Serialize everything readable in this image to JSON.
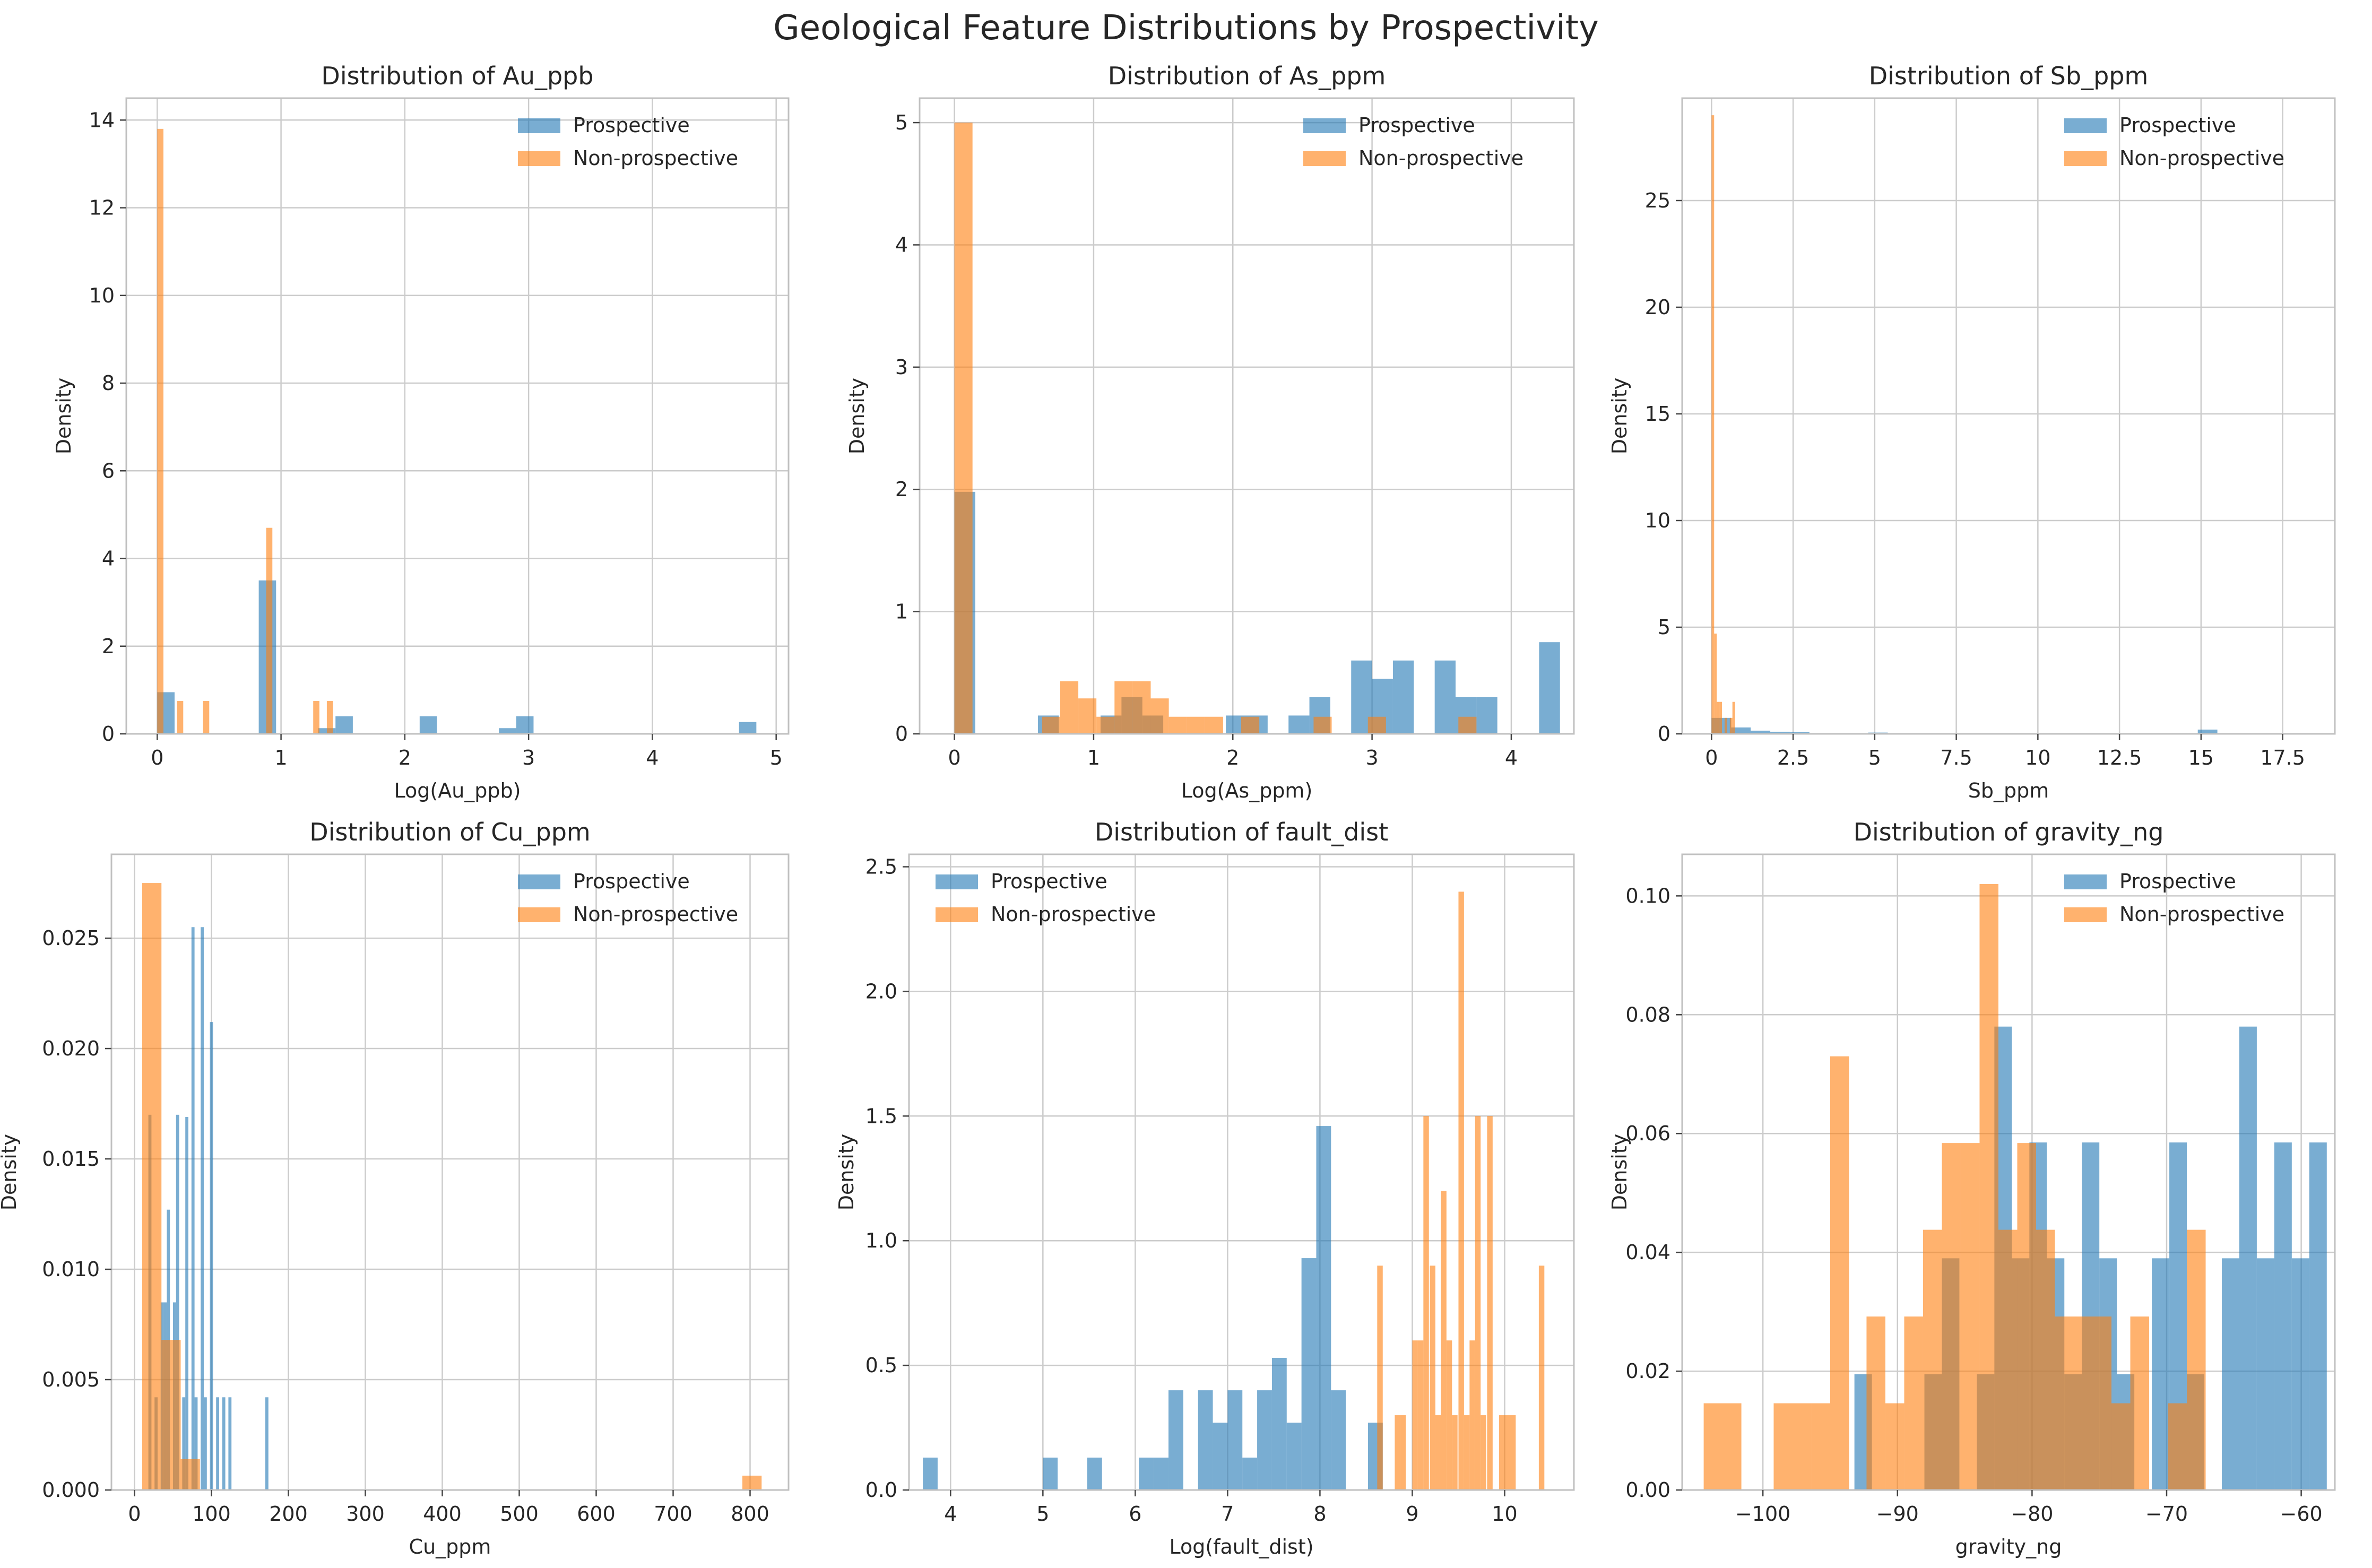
{
  "suptitle": "Geological Feature Distributions by Prospectivity",
  "colors": {
    "prospective": "#1f77b4",
    "non_prospective": "#ff7f0e",
    "grid": "#cccccc",
    "axes": "#c0c0c0",
    "text": "#262626"
  },
  "chart_data": [
    {
      "type": "histogram",
      "title": "Distribution of Au_ppb",
      "xlabel": "Log(Au_ppb)",
      "ylabel": "Density",
      "xlim": [
        -0.25,
        5.1
      ],
      "ylim": [
        0,
        14.5
      ],
      "xticks": [
        0,
        1,
        2,
        3,
        4,
        5
      ],
      "yticks": [
        0,
        2,
        4,
        6,
        8,
        10,
        12,
        14
      ],
      "grid": true,
      "legend": "top-right",
      "series": [
        {
          "name": "Prospective",
          "bins": [
            [
              0.0,
              0.14,
              0.95
            ],
            [
              0.82,
              0.96,
              3.5
            ],
            [
              1.3,
              1.44,
              0.13
            ],
            [
              1.44,
              1.58,
              0.4
            ],
            [
              2.12,
              2.26,
              0.4
            ],
            [
              2.76,
              2.9,
              0.13
            ],
            [
              2.9,
              3.04,
              0.4
            ],
            [
              4.7,
              4.84,
              0.27
            ]
          ]
        },
        {
          "name": "Non-prospective",
          "bins": [
            [
              0.0,
              0.05,
              13.8
            ],
            [
              0.16,
              0.21,
              0.75
            ],
            [
              0.37,
              0.42,
              0.75
            ],
            [
              0.88,
              0.93,
              4.7
            ],
            [
              1.26,
              1.31,
              0.75
            ],
            [
              1.37,
              1.42,
              0.75
            ]
          ]
        }
      ]
    },
    {
      "type": "histogram",
      "title": "Distribution of As_ppm",
      "xlabel": "Log(As_ppm)",
      "ylabel": "Density",
      "xlim": [
        -0.25,
        4.45
      ],
      "ylim": [
        0,
        5.2
      ],
      "xticks": [
        0,
        1,
        2,
        3,
        4
      ],
      "yticks": [
        0,
        1,
        2,
        3,
        4,
        5
      ],
      "grid": true,
      "legend": "top-right",
      "series": [
        {
          "name": "Prospective",
          "bins": [
            [
              0.0,
              0.15,
              1.98
            ],
            [
              0.6,
              0.75,
              0.15
            ],
            [
              1.05,
              1.2,
              0.15
            ],
            [
              1.2,
              1.35,
              0.3
            ],
            [
              1.35,
              1.5,
              0.15
            ],
            [
              1.95,
              2.1,
              0.15
            ],
            [
              2.1,
              2.25,
              0.15
            ],
            [
              2.4,
              2.55,
              0.15
            ],
            [
              2.55,
              2.7,
              0.3
            ],
            [
              2.85,
              3.0,
              0.6
            ],
            [
              3.0,
              3.15,
              0.45
            ],
            [
              3.15,
              3.3,
              0.6
            ],
            [
              3.45,
              3.6,
              0.6
            ],
            [
              3.6,
              3.75,
              0.3
            ],
            [
              3.75,
              3.9,
              0.3
            ],
            [
              4.2,
              4.35,
              0.75
            ]
          ]
        },
        {
          "name": "Non-prospective",
          "bins": [
            [
              0.0,
              0.13,
              5.0
            ],
            [
              0.63,
              0.76,
              0.14
            ],
            [
              0.76,
              0.89,
              0.43
            ],
            [
              0.89,
              1.02,
              0.29
            ],
            [
              1.02,
              1.15,
              0.14
            ],
            [
              1.15,
              1.28,
              0.43
            ],
            [
              1.28,
              1.41,
              0.43
            ],
            [
              1.41,
              1.54,
              0.29
            ],
            [
              1.54,
              1.67,
              0.14
            ],
            [
              1.67,
              1.8,
              0.14
            ],
            [
              1.8,
              1.93,
              0.14
            ],
            [
              2.06,
              2.19,
              0.14
            ],
            [
              2.58,
              2.71,
              0.14
            ],
            [
              2.97,
              3.1,
              0.14
            ],
            [
              3.62,
              3.75,
              0.14
            ]
          ]
        }
      ]
    },
    {
      "type": "histogram",
      "title": "Distribution of Sb_ppm",
      "xlabel": "Sb_ppm",
      "ylabel": "Density",
      "xlim": [
        -0.9,
        19.1
      ],
      "ylim": [
        0,
        29.8
      ],
      "xticks": [
        0.0,
        2.5,
        5.0,
        7.5,
        10.0,
        12.5,
        15.0,
        17.5
      ],
      "yticks": [
        0,
        5,
        10,
        15,
        20,
        25
      ],
      "grid": true,
      "legend": "top-right",
      "series": [
        {
          "name": "Prospective",
          "bins": [
            [
              0.0,
              0.6,
              0.75
            ],
            [
              0.6,
              1.2,
              0.3
            ],
            [
              1.2,
              1.8,
              0.15
            ],
            [
              1.8,
              2.4,
              0.1
            ],
            [
              2.4,
              3.0,
              0.08
            ],
            [
              4.8,
              5.4,
              0.06
            ],
            [
              14.9,
              15.5,
              0.2
            ]
          ]
        },
        {
          "name": "Non-prospective",
          "bins": [
            [
              0.0,
              0.08,
              29.0
            ],
            [
              0.08,
              0.16,
              4.7
            ],
            [
              0.16,
              0.24,
              1.5
            ],
            [
              0.24,
              0.32,
              1.5
            ],
            [
              0.4,
              0.48,
              0.75
            ],
            [
              0.56,
              0.64,
              0.75
            ],
            [
              0.64,
              0.72,
              1.5
            ]
          ]
        }
      ]
    },
    {
      "type": "histogram",
      "title": "Distribution of Cu_ppm",
      "xlabel": "Cu_ppm",
      "ylabel": "Density",
      "xlim": [
        -30,
        850
      ],
      "ylim": [
        0,
        0.0288
      ],
      "xticks": [
        0,
        100,
        200,
        300,
        400,
        500,
        600,
        700,
        800
      ],
      "yticks": [
        0.0,
        0.005,
        0.01,
        0.015,
        0.02,
        0.025
      ],
      "ytick_labels": [
        "0.000",
        "0.005",
        "0.010",
        "0.015",
        "0.020",
        "0.025"
      ],
      "grid": true,
      "legend": "top-right",
      "series": [
        {
          "name": "Prospective",
          "bins": [
            [
              18,
              22,
              0.017
            ],
            [
              26,
              30,
              0.0042
            ],
            [
              34,
              38,
              0.0085
            ],
            [
              38,
              42,
              0.0085
            ],
            [
              42,
              46,
              0.0127
            ],
            [
              50,
              54,
              0.0085
            ],
            [
              54,
              58,
              0.017
            ],
            [
              62,
              66,
              0.0042
            ],
            [
              66,
              70,
              0.0169
            ],
            [
              74,
              78,
              0.0255
            ],
            [
              78,
              82,
              0.0042
            ],
            [
              86,
              90,
              0.0255
            ],
            [
              90,
              94,
              0.0042
            ],
            [
              98,
              102,
              0.0212
            ],
            [
              106,
              110,
              0.0042
            ],
            [
              114,
              118,
              0.0042
            ],
            [
              122,
              126,
              0.0042
            ],
            [
              170,
              174,
              0.0042
            ]
          ]
        },
        {
          "name": "Non-prospective",
          "bins": [
            [
              10,
              35,
              0.0275
            ],
            [
              35,
              60,
              0.0068
            ],
            [
              60,
              85,
              0.0014
            ],
            [
              790,
              815,
              0.00065
            ]
          ]
        }
      ]
    },
    {
      "type": "histogram",
      "title": "Distribution of fault_dist",
      "xlabel": "Log(fault_dist)",
      "ylabel": "Density",
      "xlim": [
        3.55,
        10.75
      ],
      "ylim": [
        0,
        2.55
      ],
      "xticks": [
        4,
        5,
        6,
        7,
        8,
        9,
        10
      ],
      "yticks": [
        0.0,
        0.5,
        1.0,
        1.5,
        2.0,
        2.5
      ],
      "ytick_labels": [
        "0.0",
        "0.5",
        "1.0",
        "1.5",
        "2.0",
        "2.5"
      ],
      "grid": true,
      "legend": "top-left",
      "series": [
        {
          "name": "Prospective",
          "bins": [
            [
              3.7,
              3.86,
              0.13
            ],
            [
              5.0,
              5.16,
              0.13
            ],
            [
              5.48,
              5.64,
              0.13
            ],
            [
              6.04,
              6.2,
              0.13
            ],
            [
              6.2,
              6.36,
              0.13
            ],
            [
              6.36,
              6.52,
              0.4
            ],
            [
              6.68,
              6.84,
              0.4
            ],
            [
              6.84,
              7.0,
              0.27
            ],
            [
              7.0,
              7.16,
              0.4
            ],
            [
              7.16,
              7.32,
              0.13
            ],
            [
              7.32,
              7.48,
              0.4
            ],
            [
              7.48,
              7.64,
              0.53
            ],
            [
              7.64,
              7.8,
              0.27
            ],
            [
              7.8,
              7.96,
              0.93
            ],
            [
              7.96,
              8.12,
              1.46
            ],
            [
              8.12,
              8.28,
              0.4
            ],
            [
              8.52,
              8.68,
              0.27
            ]
          ]
        },
        {
          "name": "Non-prospective",
          "bins": [
            [
              8.62,
              8.68,
              0.9
            ],
            [
              8.81,
              8.87,
              0.3
            ],
            [
              8.87,
              8.93,
              0.3
            ],
            [
              9.0,
              9.06,
              0.6
            ],
            [
              9.06,
              9.12,
              0.6
            ],
            [
              9.12,
              9.18,
              1.5
            ],
            [
              9.19,
              9.25,
              0.9
            ],
            [
              9.25,
              9.31,
              0.3
            ],
            [
              9.31,
              9.37,
              1.2
            ],
            [
              9.37,
              9.43,
              0.6
            ],
            [
              9.43,
              9.49,
              0.3
            ],
            [
              9.5,
              9.56,
              2.4
            ],
            [
              9.56,
              9.62,
              0.3
            ],
            [
              9.62,
              9.68,
              0.6
            ],
            [
              9.68,
              9.74,
              1.5
            ],
            [
              9.74,
              9.8,
              0.3
            ],
            [
              9.81,
              9.87,
              1.5
            ],
            [
              9.94,
              10.0,
              0.3
            ],
            [
              10.0,
              10.06,
              0.3
            ],
            [
              10.06,
              10.12,
              0.3
            ],
            [
              10.37,
              10.43,
              0.9
            ]
          ]
        }
      ]
    },
    {
      "type": "histogram",
      "title": "Distribution of gravity_ng",
      "xlabel": "gravity_ng",
      "ylabel": "Density",
      "xlim": [
        -106,
        -57.5
      ],
      "ylim": [
        0,
        0.107
      ],
      "xticks": [
        -100,
        -90,
        -80,
        -70,
        -60
      ],
      "xtick_labels": [
        "−100",
        "−90",
        "−80",
        "−70",
        "−60"
      ],
      "yticks": [
        0.0,
        0.02,
        0.04,
        0.06,
        0.08,
        0.1
      ],
      "ytick_labels": [
        "0.00",
        "0.02",
        "0.04",
        "0.06",
        "0.08",
        "0.10"
      ],
      "grid": true,
      "legend": "top-right",
      "series": [
        {
          "name": "Prospective",
          "bins": [
            [
              -93.2,
              -91.9,
              0.0195
            ],
            [
              -88.0,
              -86.7,
              0.0195
            ],
            [
              -86.7,
              -85.4,
              0.039
            ],
            [
              -84.1,
              -82.8,
              0.0195
            ],
            [
              -82.8,
              -81.5,
              0.078
            ],
            [
              -81.5,
              -80.2,
              0.039
            ],
            [
              -80.2,
              -78.9,
              0.0585
            ],
            [
              -78.9,
              -77.6,
              0.039
            ],
            [
              -77.6,
              -76.3,
              0.0195
            ],
            [
              -76.3,
              -75.0,
              0.0585
            ],
            [
              -75.0,
              -73.7,
              0.039
            ],
            [
              -73.7,
              -72.4,
              0.0195
            ],
            [
              -71.1,
              -69.8,
              0.039
            ],
            [
              -69.8,
              -68.5,
              0.0585
            ],
            [
              -68.5,
              -67.2,
              0.0195
            ],
            [
              -65.9,
              -64.6,
              0.039
            ],
            [
              -64.6,
              -63.3,
              0.078
            ],
            [
              -63.3,
              -62.0,
              0.039
            ],
            [
              -62.0,
              -60.7,
              0.0585
            ],
            [
              -60.7,
              -59.4,
              0.039
            ],
            [
              -59.4,
              -58.1,
              0.0585
            ]
          ]
        },
        {
          "name": "Non-prospective",
          "bins": [
            [
              -104.4,
              -101.6,
              0.0146
            ],
            [
              -99.2,
              -96.4,
              0.0146
            ],
            [
              -96.4,
              -95.0,
              0.0146
            ],
            [
              -95.0,
              -93.6,
              0.073
            ],
            [
              -92.3,
              -90.9,
              0.0292
            ],
            [
              -90.9,
              -89.5,
              0.0146
            ],
            [
              -89.5,
              -88.1,
              0.0292
            ],
            [
              -88.1,
              -86.7,
              0.0438
            ],
            [
              -86.7,
              -85.3,
              0.0584
            ],
            [
              -85.3,
              -83.9,
              0.0584
            ],
            [
              -83.9,
              -82.5,
              0.102
            ],
            [
              -82.5,
              -81.1,
              0.0438
            ],
            [
              -81.1,
              -79.7,
              0.0584
            ],
            [
              -79.7,
              -78.3,
              0.0438
            ],
            [
              -78.3,
              -76.9,
              0.0292
            ],
            [
              -76.9,
              -75.5,
              0.0292
            ],
            [
              -75.5,
              -74.1,
              0.0292
            ],
            [
              -74.1,
              -72.7,
              0.0146
            ],
            [
              -72.7,
              -71.3,
              0.0292
            ],
            [
              -69.9,
              -68.5,
              0.0146
            ],
            [
              -68.5,
              -67.1,
              0.0438
            ]
          ]
        }
      ]
    }
  ]
}
